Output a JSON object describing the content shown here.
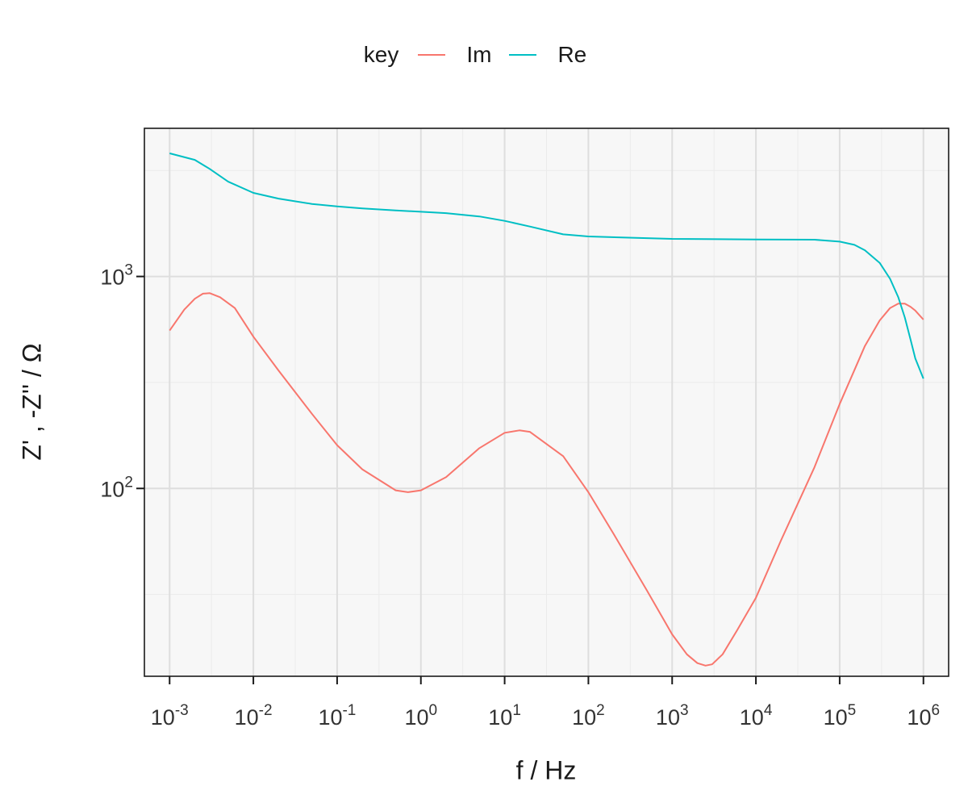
{
  "chart_data": {
    "type": "line",
    "xlabel": "f / Hz",
    "ylabel": "Z' , -Z'' / Ω",
    "x_scale": "log10",
    "y_scale": "log10",
    "xlim": [
      0.0005,
      2000000
    ],
    "ylim": [
      13,
      5000
    ],
    "x_ticks": [
      0.001,
      0.01,
      0.1,
      1,
      10,
      100,
      1000,
      10000,
      100000,
      1000000
    ],
    "x_tick_exponents": [
      "-3",
      "-2",
      "-1",
      "0",
      "1",
      "2",
      "3",
      "4",
      "5",
      "6"
    ],
    "y_ticks": [
      100,
      1000
    ],
    "y_tick_exponents": [
      "2",
      "3"
    ],
    "tick_base": "10",
    "grid": true,
    "legend": {
      "title": "key",
      "position": "top",
      "entries": [
        "Im",
        "Re"
      ]
    },
    "series": [
      {
        "name": "Im",
        "color": "#F8766D",
        "x": [
          0.001,
          0.0015,
          0.002,
          0.0025,
          0.003,
          0.004,
          0.006,
          0.01,
          0.02,
          0.05,
          0.1,
          0.2,
          0.5,
          0.7,
          1,
          2,
          5,
          10,
          15,
          20,
          50,
          100,
          200,
          500,
          1000,
          1500,
          2000,
          2500,
          3000,
          4000,
          6000,
          10000,
          20000,
          50000,
          100000,
          200000,
          300000,
          400000,
          500000,
          600000,
          700000,
          800000,
          1000000
        ],
        "y": [
          556,
          698,
          785,
          830,
          835,
          798,
          710,
          520,
          360,
          225,
          160,
          123,
          98,
          96,
          98,
          113,
          155,
          183,
          188,
          185,
          142,
          96,
          61,
          33,
          20.5,
          16.5,
          15,
          14.6,
          14.8,
          16.5,
          21.5,
          30.5,
          57,
          126,
          250,
          470,
          620,
          710,
          745,
          745,
          720,
          690,
          626
        ]
      },
      {
        "name": "Re",
        "color": "#00BFC4",
        "x": [
          0.001,
          0.002,
          0.003,
          0.005,
          0.01,
          0.02,
          0.05,
          0.1,
          0.2,
          0.5,
          1,
          2,
          5,
          10,
          20,
          50,
          100,
          1000,
          10000,
          50000,
          100000,
          150000,
          200000,
          300000,
          400000,
          500000,
          600000,
          700000,
          800000,
          1000000
        ],
        "y": [
          3810,
          3550,
          3220,
          2800,
          2480,
          2330,
          2200,
          2140,
          2095,
          2050,
          2020,
          1990,
          1920,
          1830,
          1720,
          1580,
          1545,
          1505,
          1495,
          1492,
          1460,
          1410,
          1330,
          1160,
          975,
          800,
          640,
          505,
          410,
          330
        ]
      }
    ]
  }
}
